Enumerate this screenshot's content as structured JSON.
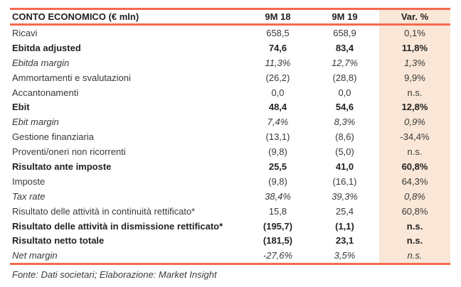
{
  "colors": {
    "accent_line": "#F5694F",
    "var_column_bg": "#FAE7D7",
    "text": "#383838"
  },
  "table": {
    "header": {
      "label": "CONTO ECONOMICO (€ mln)",
      "col_9m18": "9M 18",
      "col_9m19": "9M 19",
      "col_var": "Var. %"
    },
    "rows": [
      {
        "label": "Ricavi",
        "v_9m18": "658,5",
        "v_9m19": "658,9",
        "var": "0,1%"
      },
      {
        "label": "Ebitda adjusted",
        "v_9m18": "74,6",
        "v_9m19": "83,4",
        "var": "11,8%"
      },
      {
        "label": "Ebitda margin",
        "v_9m18": "11,3%",
        "v_9m19": "12,7%",
        "var": "1,3%"
      },
      {
        "label": "Ammortamenti e svalutazioni",
        "v_9m18": "(26,2)",
        "v_9m19": "(28,8)",
        "var": "9,9%"
      },
      {
        "label": "Accantonamenti",
        "v_9m18": "0,0",
        "v_9m19": "0,0",
        "var": "n.s."
      },
      {
        "label": "Ebit",
        "v_9m18": "48,4",
        "v_9m19": "54,6",
        "var": "12,8%"
      },
      {
        "label": "Ebit margin",
        "v_9m18": "7,4%",
        "v_9m19": "8,3%",
        "var": "0,9%"
      },
      {
        "label": "Gestione finanziaria",
        "v_9m18": "(13,1)",
        "v_9m19": "(8,6)",
        "var": "-34,4%"
      },
      {
        "label": "Proventi/oneri non ricorrenti",
        "v_9m18": "(9,8)",
        "v_9m19": "(5,0)",
        "var": "n.s."
      },
      {
        "label": "Risultato ante imposte",
        "v_9m18": "25,5",
        "v_9m19": "41,0",
        "var": "60,8%"
      },
      {
        "label": "Imposte",
        "v_9m18": "(9,8)",
        "v_9m19": "(16,1)",
        "var": "64,3%"
      },
      {
        "label": "Tax rate",
        "v_9m18": "38,4%",
        "v_9m19": "39,3%",
        "var": "0,8%"
      },
      {
        "label": "Risultato delle attività in continuità rettificato*",
        "v_9m18": "15,8",
        "v_9m19": "25,4",
        "var": "60,8%"
      },
      {
        "label": "Risultato delle attività in dismissione rettificato*",
        "v_9m18": "(195,7)",
        "v_9m19": "(1,1)",
        "var": "n.s."
      },
      {
        "label": "Risultato netto totale",
        "v_9m18": "(181,5)",
        "v_9m19": "23,1",
        "var": "n.s."
      },
      {
        "label": "Net margin",
        "v_9m18": "-27,6%",
        "v_9m19": "3,5%",
        "var": "n.s."
      }
    ]
  },
  "footer": {
    "source": "Fonte: Dati societari;  Elaborazione: Market Insight"
  }
}
